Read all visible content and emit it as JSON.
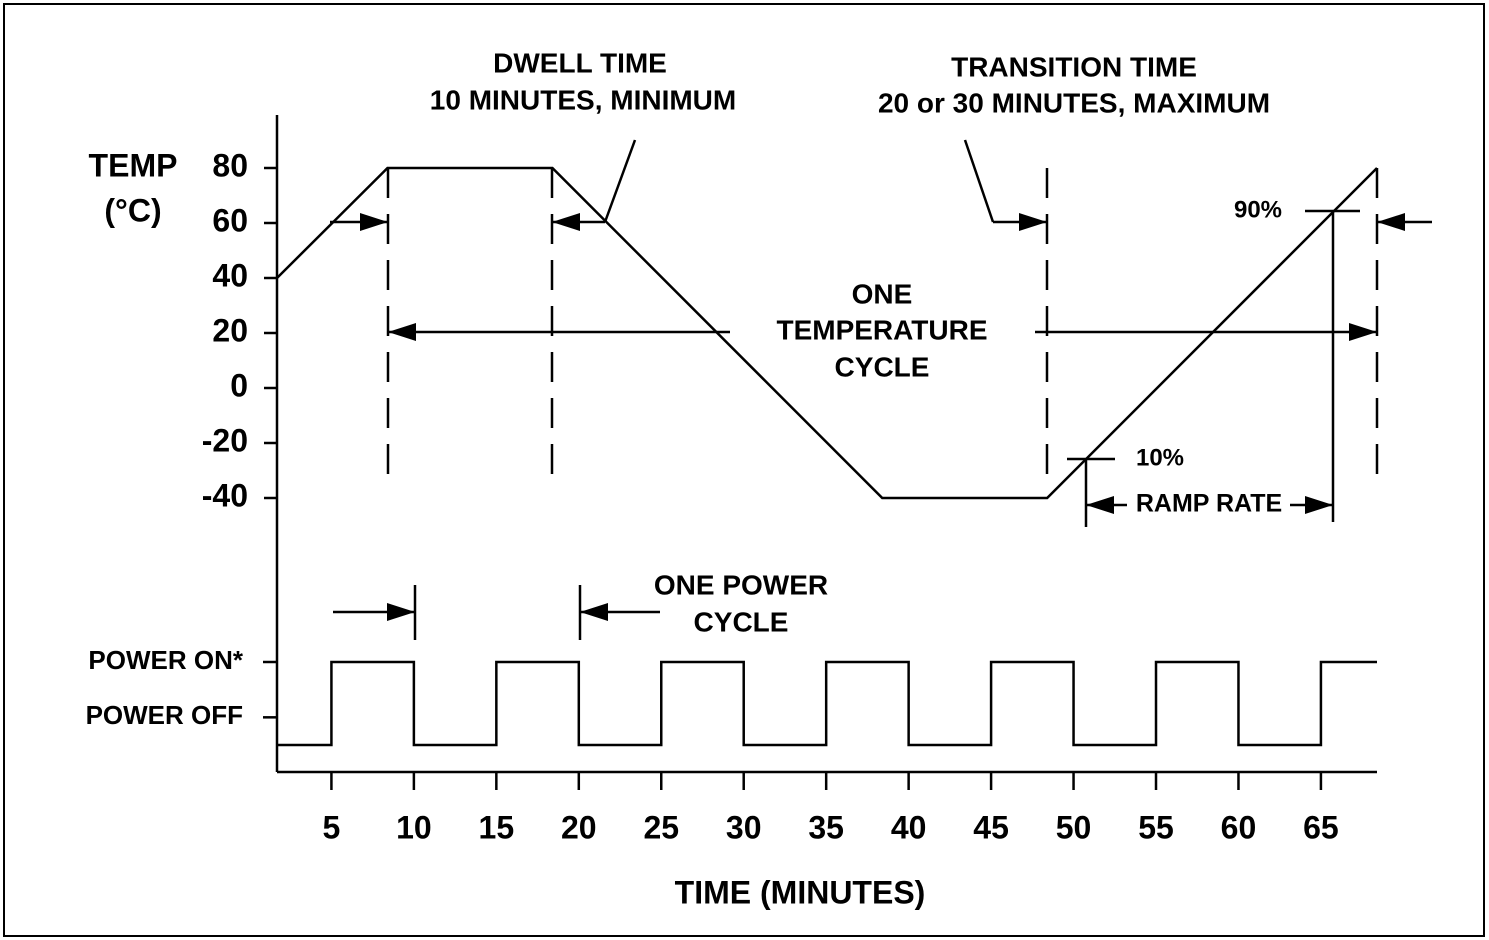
{
  "chart_data": {
    "type": "line",
    "x_label": "TIME (MINUTES)",
    "y_label": [
      "TEMP",
      "(°C)"
    ],
    "xlim": [
      1.7,
      68.4
    ],
    "xticks": [
      5,
      10,
      15,
      20,
      25,
      30,
      35,
      40,
      45,
      50,
      55,
      60,
      65
    ],
    "ylim": [
      -40,
      80
    ],
    "yticks": [
      80,
      60,
      40,
      20,
      0,
      -20,
      -40
    ],
    "temperature": {
      "x": [
        1.7,
        8.4,
        18.4,
        38.4,
        48.4,
        68.4
      ],
      "values": [
        40,
        80,
        80,
        -40,
        -40,
        80
      ]
    },
    "power": {
      "ylim": [
        -0.5,
        1
      ],
      "yticks": [
        {
          "value": 1,
          "label": "POWER ON*"
        },
        {
          "value": 0,
          "label": "POWER OFF"
        }
      ],
      "x": [
        1.7,
        5,
        5,
        10,
        10,
        15,
        15,
        20,
        20,
        25,
        25,
        30,
        30,
        35,
        35,
        40,
        40,
        45,
        45,
        50,
        50,
        55,
        55,
        60,
        60,
        65,
        65,
        68.4
      ],
      "values": [
        -0.5,
        -0.5,
        1,
        1,
        -0.5,
        -0.5,
        1,
        1,
        -0.5,
        -0.5,
        1,
        1,
        -0.5,
        -0.5,
        1,
        1,
        -0.5,
        -0.5,
        1,
        1,
        -0.5,
        -0.5,
        1,
        1,
        -0.5,
        -0.5,
        1,
        1
      ]
    },
    "annotations": [
      "DWELL TIME",
      "10 MINUTES, MINIMUM",
      "TRANSITION TIME",
      "20 or 30 MINUTES, MAXIMUM",
      "ONE",
      "TEMPERATURE",
      "CYCLE",
      "90%",
      "10%",
      "RAMP RATE",
      "ONE POWER",
      "CYCLE"
    ]
  }
}
